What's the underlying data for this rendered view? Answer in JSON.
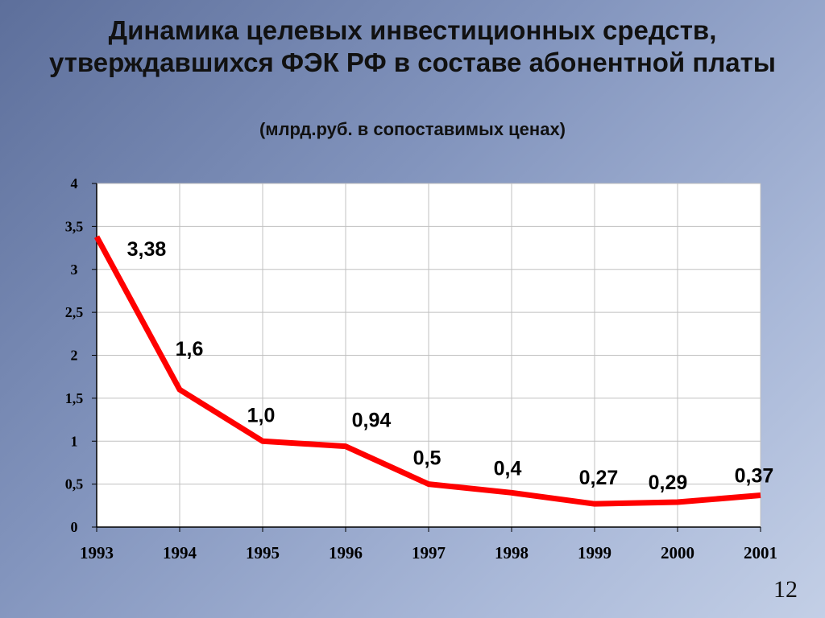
{
  "slide": {
    "title": "Динамика  целевых  инвестиционных средств, утверждавшихся ФЭК РФ в составе абонентной платы",
    "subtitle": "(млрд.руб. в сопоставимых ценах)",
    "page_number": "12"
  },
  "chart_data": {
    "type": "line",
    "title": "Динамика  целевых  инвестиционных средств, утверждавшихся ФЭК РФ в составе абонентной платы",
    "subtitle": "(млрд.руб. в сопоставимых ценах)",
    "xlabel": "",
    "ylabel": "",
    "categories": [
      "1993",
      "1994",
      "1995",
      "1996",
      "1997",
      "1998",
      "1999",
      "2000",
      "2001"
    ],
    "series": [
      {
        "values": [
          3.38,
          1.6,
          1.0,
          0.94,
          0.5,
          0.4,
          0.27,
          0.29,
          0.37
        ],
        "data_labels": [
          "3,38",
          "1,6",
          "1,0",
          "0,94",
          "0,5",
          "0,4",
          "0,27",
          "0,29",
          "0,37"
        ],
        "color": "#ff0000"
      }
    ],
    "ylim": [
      0,
      4
    ],
    "y_ticks": [
      "0",
      "0,5",
      "1",
      "1,5",
      "2",
      "2,5",
      "3",
      "3,5",
      "4"
    ],
    "grid": true,
    "legend": "none",
    "plot_background": "#ffffff",
    "gridline_color": "#c0c0c0"
  }
}
